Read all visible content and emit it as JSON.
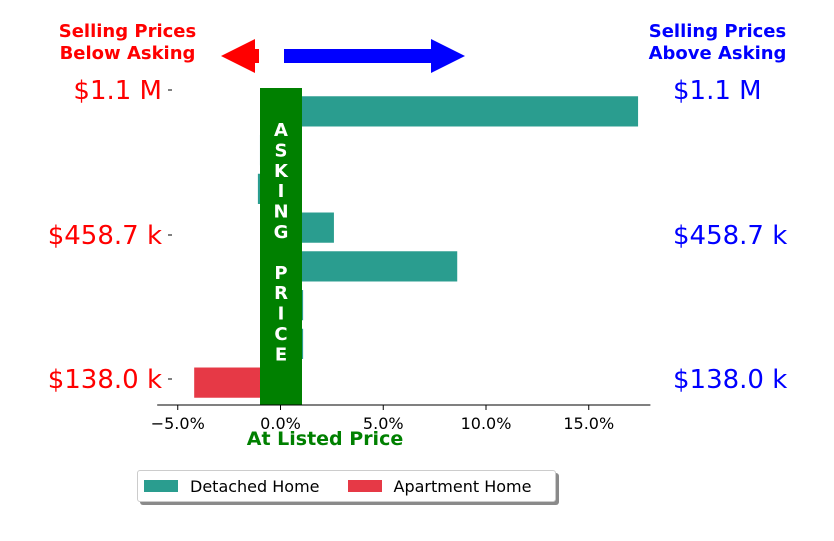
{
  "header_left": {
    "line1": "Selling Prices",
    "line2": "Below Asking"
  },
  "header_right": {
    "line1": "Selling Prices",
    "line2": "Above Asking"
  },
  "asking_band_text": [
    "A",
    "S",
    "K",
    "I",
    "N",
    "G",
    "",
    "P",
    "R",
    "I",
    "C",
    "E"
  ],
  "colors": {
    "detached": "#2a9d8f",
    "apartment": "#e63946",
    "band": "#008000",
    "left_labels": "#ff0000",
    "right_labels": "#0000ff",
    "arrow_left": "#ff0000",
    "arrow_right": "#0000ff"
  },
  "chart_data": {
    "type": "bar",
    "orientation": "horizontal",
    "xlabel": "At Listed Price",
    "xlim": [
      -6.0,
      18.0
    ],
    "x_ticks": [
      -5.0,
      0.0,
      5.0,
      10.0,
      15.0
    ],
    "x_tick_labels": [
      "−5.0%",
      "0.0%",
      "5.0%",
      "10.0%",
      "15.0%"
    ],
    "y_tick_labels_left": [
      "$1.1 M",
      "$458.7 k",
      "$138.0 k"
    ],
    "y_tick_labels_right": [
      "$1.1 M",
      "$458.7 k",
      "$138.0 k"
    ],
    "series": [
      {
        "name": "Detached Home",
        "color": "#2a9d8f",
        "values": [
          17.4,
          -1.0,
          -1.1,
          2.6,
          8.6,
          1.1,
          1.1,
          null
        ]
      },
      {
        "name": "Apartment Home",
        "color": "#e63946",
        "values": [
          null,
          null,
          null,
          null,
          null,
          null,
          null,
          -4.2
        ]
      }
    ],
    "legend_position": "bottom-center"
  }
}
